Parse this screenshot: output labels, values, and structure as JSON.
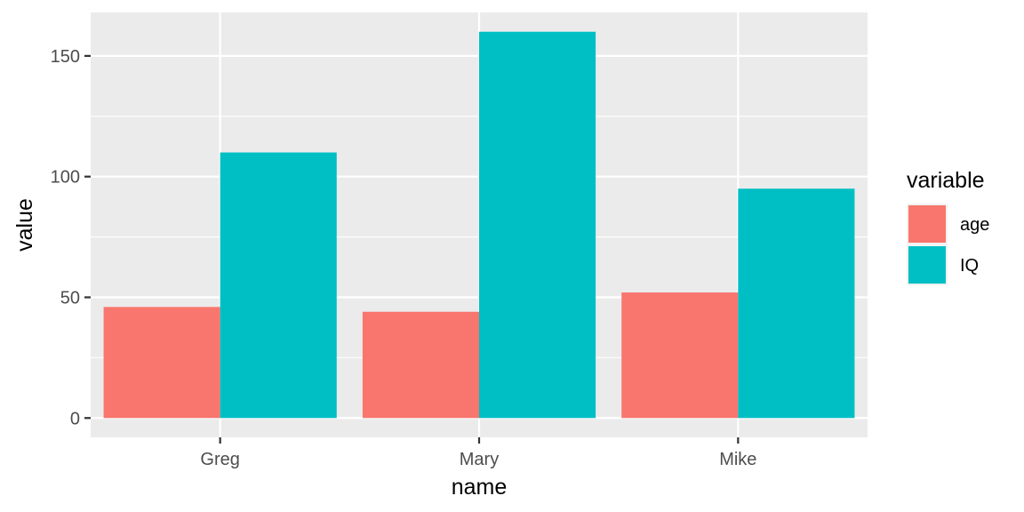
{
  "chart_data": {
    "type": "bar",
    "categories": [
      "Greg",
      "Mary",
      "Mike"
    ],
    "series": [
      {
        "name": "age",
        "values": [
          46,
          44,
          52
        ],
        "color": "#F8766D"
      },
      {
        "name": "IQ",
        "values": [
          110,
          160,
          95
        ],
        "color": "#00BFC4"
      }
    ],
    "xlabel": "name",
    "ylabel": "value",
    "ylim": [
      -8,
      168
    ],
    "yticks": [
      0,
      50,
      100,
      150
    ],
    "yminor": [
      25,
      75,
      125
    ],
    "legend_title": "variable",
    "legend_position": "right",
    "grid": true,
    "panel_background": "#EBEBEB",
    "grid_color": "#FFFFFF"
  }
}
